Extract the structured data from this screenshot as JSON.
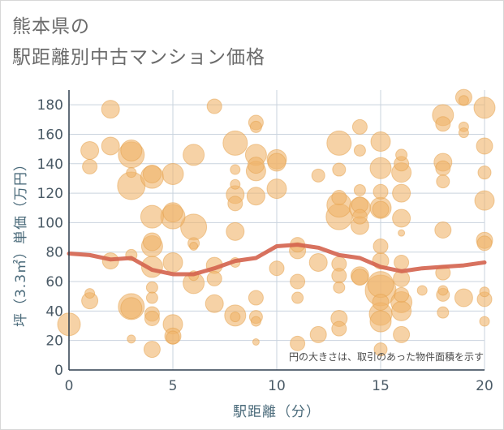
{
  "title_lines": [
    "熊本県の",
    "駅距離別中古マンション価格"
  ],
  "chart_data": {
    "type": "scatter",
    "xlabel": "駅距離（分）",
    "ylabel": "坪（3.3㎡）単価（万円）",
    "xlim": [
      0,
      20
    ],
    "ylim": [
      0,
      190
    ],
    "x_ticks": [
      0,
      5,
      10,
      15,
      20
    ],
    "y_ticks": [
      0,
      20,
      40,
      60,
      80,
      100,
      120,
      140,
      160,
      180
    ],
    "grid": true,
    "note": "円の大きさは、取引のあった物件面積を示す",
    "colors": {
      "bubble": "#f0b46a",
      "bubble_edge": "#e3a04a",
      "line": "#d4634e",
      "grid": "#c9d3de",
      "axis": "#2e3e4e"
    },
    "bubbles": [
      {
        "x": 0,
        "y": 31,
        "s": 14
      },
      {
        "x": 1,
        "y": 149,
        "s": 11
      },
      {
        "x": 1,
        "y": 138,
        "s": 9
      },
      {
        "x": 1,
        "y": 52,
        "s": 6
      },
      {
        "x": 1,
        "y": 47,
        "s": 10
      },
      {
        "x": 2,
        "y": 177,
        "s": 11
      },
      {
        "x": 2,
        "y": 152,
        "s": 11
      },
      {
        "x": 2,
        "y": 74,
        "s": 10
      },
      {
        "x": 3,
        "y": 149,
        "s": 13
      },
      {
        "x": 3,
        "y": 146,
        "s": 16
      },
      {
        "x": 3,
        "y": 134,
        "s": 6
      },
      {
        "x": 3,
        "y": 125,
        "s": 17
      },
      {
        "x": 3,
        "y": 78,
        "s": 7
      },
      {
        "x": 3,
        "y": 43,
        "s": 16
      },
      {
        "x": 3,
        "y": 42,
        "s": 13
      },
      {
        "x": 3,
        "y": 21,
        "s": 5
      },
      {
        "x": 4,
        "y": 133,
        "s": 11
      },
      {
        "x": 4,
        "y": 131,
        "s": 14
      },
      {
        "x": 4,
        "y": 104,
        "s": 14
      },
      {
        "x": 4,
        "y": 87,
        "s": 11
      },
      {
        "x": 4,
        "y": 84,
        "s": 13
      },
      {
        "x": 4,
        "y": 70,
        "s": 13
      },
      {
        "x": 4,
        "y": 56,
        "s": 7
      },
      {
        "x": 4,
        "y": 49,
        "s": 7
      },
      {
        "x": 4,
        "y": 38,
        "s": 9
      },
      {
        "x": 4,
        "y": 35,
        "s": 9
      },
      {
        "x": 4,
        "y": 14,
        "s": 10
      },
      {
        "x": 5,
        "y": 133,
        "s": 13
      },
      {
        "x": 5,
        "y": 107,
        "s": 12
      },
      {
        "x": 5,
        "y": 104,
        "s": 15
      },
      {
        "x": 5,
        "y": 73,
        "s": 12
      },
      {
        "x": 5,
        "y": 31,
        "s": 12
      },
      {
        "x": 5,
        "y": 23,
        "s": 10
      },
      {
        "x": 5,
        "y": 22,
        "s": 8
      },
      {
        "x": 6,
        "y": 146,
        "s": 13
      },
      {
        "x": 6,
        "y": 97,
        "s": 16
      },
      {
        "x": 6,
        "y": 86,
        "s": 7
      },
      {
        "x": 6,
        "y": 84,
        "s": 5
      },
      {
        "x": 6,
        "y": 59,
        "s": 13
      },
      {
        "x": 6,
        "y": 64,
        "s": 6
      },
      {
        "x": 7,
        "y": 179,
        "s": 9
      },
      {
        "x": 7,
        "y": 71,
        "s": 10
      },
      {
        "x": 7,
        "y": 62,
        "s": 9
      },
      {
        "x": 7,
        "y": 45,
        "s": 11
      },
      {
        "x": 8,
        "y": 154,
        "s": 15
      },
      {
        "x": 8,
        "y": 136,
        "s": 6
      },
      {
        "x": 8,
        "y": 126,
        "s": 6
      },
      {
        "x": 8,
        "y": 119,
        "s": 11
      },
      {
        "x": 8,
        "y": 113,
        "s": 9
      },
      {
        "x": 8,
        "y": 94,
        "s": 11
      },
      {
        "x": 8,
        "y": 73,
        "s": 6
      },
      {
        "x": 8,
        "y": 37,
        "s": 13
      },
      {
        "x": 8,
        "y": 36,
        "s": 6
      },
      {
        "x": 9,
        "y": 168,
        "s": 9
      },
      {
        "x": 9,
        "y": 165,
        "s": 7
      },
      {
        "x": 9,
        "y": 146,
        "s": 13
      },
      {
        "x": 9,
        "y": 139,
        "s": 10
      },
      {
        "x": 9,
        "y": 135,
        "s": 12
      },
      {
        "x": 9,
        "y": 118,
        "s": 11
      },
      {
        "x": 9,
        "y": 49,
        "s": 9
      },
      {
        "x": 9,
        "y": 36,
        "s": 8
      },
      {
        "x": 9,
        "y": 33,
        "s": 6
      },
      {
        "x": 9,
        "y": 19,
        "s": 4
      },
      {
        "x": 10,
        "y": 143,
        "s": 12
      },
      {
        "x": 10,
        "y": 141,
        "s": 11
      },
      {
        "x": 10,
        "y": 123,
        "s": 12
      },
      {
        "x": 10,
        "y": 69,
        "s": 9
      },
      {
        "x": 11,
        "y": 85,
        "s": 9
      },
      {
        "x": 11,
        "y": 81,
        "s": 10
      },
      {
        "x": 11,
        "y": 60,
        "s": 9
      },
      {
        "x": 11,
        "y": 49,
        "s": 7
      },
      {
        "x": 11,
        "y": 18,
        "s": 9
      },
      {
        "x": 12,
        "y": 132,
        "s": 8
      },
      {
        "x": 12,
        "y": 73,
        "s": 11
      },
      {
        "x": 12,
        "y": 24,
        "s": 10
      },
      {
        "x": 13,
        "y": 154,
        "s": 15
      },
      {
        "x": 13,
        "y": 136,
        "s": 8
      },
      {
        "x": 13,
        "y": 117,
        "s": 9
      },
      {
        "x": 13,
        "y": 112,
        "s": 15
      },
      {
        "x": 13,
        "y": 104,
        "s": 16
      },
      {
        "x": 13,
        "y": 72,
        "s": 9
      },
      {
        "x": 13,
        "y": 64,
        "s": 9
      },
      {
        "x": 13,
        "y": 56,
        "s": 7
      },
      {
        "x": 13,
        "y": 35,
        "s": 10
      },
      {
        "x": 13,
        "y": 28,
        "s": 9
      },
      {
        "x": 14,
        "y": 165,
        "s": 9
      },
      {
        "x": 14,
        "y": 149,
        "s": 7
      },
      {
        "x": 14,
        "y": 122,
        "s": 7
      },
      {
        "x": 14,
        "y": 112,
        "s": 10
      },
      {
        "x": 14,
        "y": 110,
        "s": 13
      },
      {
        "x": 14,
        "y": 104,
        "s": 9
      },
      {
        "x": 14,
        "y": 98,
        "s": 11
      },
      {
        "x": 14,
        "y": 64,
        "s": 11
      },
      {
        "x": 14,
        "y": 63,
        "s": 10
      },
      {
        "x": 15,
        "y": 155,
        "s": 12
      },
      {
        "x": 15,
        "y": 137,
        "s": 13
      },
      {
        "x": 15,
        "y": 121,
        "s": 9
      },
      {
        "x": 15,
        "y": 110,
        "s": 13
      },
      {
        "x": 15,
        "y": 109,
        "s": 10
      },
      {
        "x": 15,
        "y": 84,
        "s": 9
      },
      {
        "x": 15,
        "y": 74,
        "s": 10
      },
      {
        "x": 15,
        "y": 58,
        "s": 16
      },
      {
        "x": 15,
        "y": 54,
        "s": 19
      },
      {
        "x": 15,
        "y": 46,
        "s": 10
      },
      {
        "x": 15,
        "y": 38,
        "s": 14
      },
      {
        "x": 15,
        "y": 33,
        "s": 13
      },
      {
        "x": 15,
        "y": 14,
        "s": 8
      },
      {
        "x": 16,
        "y": 146,
        "s": 7
      },
      {
        "x": 16,
        "y": 140,
        "s": 9
      },
      {
        "x": 16,
        "y": 134,
        "s": 12
      },
      {
        "x": 16,
        "y": 120,
        "s": 11
      },
      {
        "x": 16,
        "y": 103,
        "s": 11
      },
      {
        "x": 16,
        "y": 93,
        "s": 4
      },
      {
        "x": 16,
        "y": 73,
        "s": 9
      },
      {
        "x": 16,
        "y": 62,
        "s": 10
      },
      {
        "x": 16,
        "y": 51,
        "s": 9
      },
      {
        "x": 16,
        "y": 46,
        "s": 13
      },
      {
        "x": 16,
        "y": 40,
        "s": 12
      },
      {
        "x": 16,
        "y": 24,
        "s": 10
      },
      {
        "x": 17,
        "y": 54,
        "s": 6
      },
      {
        "x": 18,
        "y": 173,
        "s": 13
      },
      {
        "x": 18,
        "y": 167,
        "s": 9
      },
      {
        "x": 18,
        "y": 141,
        "s": 11
      },
      {
        "x": 18,
        "y": 137,
        "s": 9
      },
      {
        "x": 18,
        "y": 128,
        "s": 8
      },
      {
        "x": 18,
        "y": 95,
        "s": 10
      },
      {
        "x": 18,
        "y": 66,
        "s": 9
      },
      {
        "x": 18,
        "y": 54,
        "s": 6
      },
      {
        "x": 18,
        "y": 51,
        "s": 8
      },
      {
        "x": 18,
        "y": 39,
        "s": 7
      },
      {
        "x": 19,
        "y": 185,
        "s": 10
      },
      {
        "x": 19,
        "y": 183,
        "s": 6
      },
      {
        "x": 19,
        "y": 165,
        "s": 6
      },
      {
        "x": 19,
        "y": 161,
        "s": 6
      },
      {
        "x": 19,
        "y": 49,
        "s": 11
      },
      {
        "x": 20,
        "y": 178,
        "s": 13
      },
      {
        "x": 20,
        "y": 152,
        "s": 10
      },
      {
        "x": 20,
        "y": 134,
        "s": 8
      },
      {
        "x": 20,
        "y": 115,
        "s": 12
      },
      {
        "x": 20,
        "y": 88,
        "s": 10
      },
      {
        "x": 20,
        "y": 86,
        "s": 9
      },
      {
        "x": 20,
        "y": 53,
        "s": 6
      },
      {
        "x": 20,
        "y": 48,
        "s": 9
      },
      {
        "x": 20,
        "y": 33,
        "s": 6
      }
    ],
    "trend_line": {
      "x": [
        0,
        1,
        2,
        3,
        4,
        5,
        6,
        7,
        8,
        9,
        10,
        11,
        12,
        13,
        14,
        15,
        16,
        17,
        18,
        19,
        20
      ],
      "y": [
        79,
        78,
        75,
        76,
        68,
        65,
        65,
        69,
        74,
        76,
        84,
        85,
        83,
        78,
        76,
        70,
        67,
        69,
        70,
        71,
        73
      ]
    }
  }
}
